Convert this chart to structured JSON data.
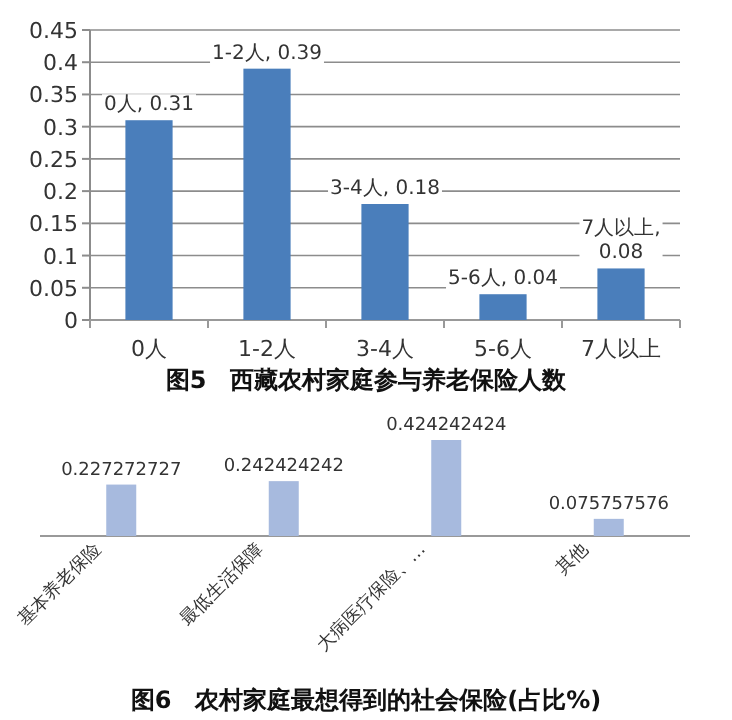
{
  "chart_data": [
    {
      "type": "bar",
      "title": "图5　西藏农村家庭参与养老保险人数",
      "categories": [
        "0人",
        "1-2人",
        "3-4人",
        "5-6人",
        "7人以上"
      ],
      "values": [
        0.31,
        0.39,
        0.18,
        0.04,
        0.08
      ],
      "color": "#4a7ebb",
      "value_labels": [
        "0人, 0.31",
        "1-2人, 0.39",
        "3-4人, 0.18",
        "5-6人, 0.04",
        "7人以上, 0.08"
      ],
      "ylim": [
        0,
        0.45
      ],
      "yticks": [
        0,
        0.05,
        0.1,
        0.15,
        0.2,
        0.25,
        0.3,
        0.35,
        0.4,
        0.45
      ],
      "grid": "y"
    },
    {
      "type": "bar",
      "title": "图6　农村家庭最想得到的社会保险(占比%)",
      "categories": [
        "基本养老保险",
        "最低生活保障",
        "大病医疗保险、…",
        "其他"
      ],
      "values": [
        0.227272727,
        0.242424242,
        0.424242424,
        0.075757576
      ],
      "color": "#a7bade",
      "data_labels": true
    }
  ]
}
